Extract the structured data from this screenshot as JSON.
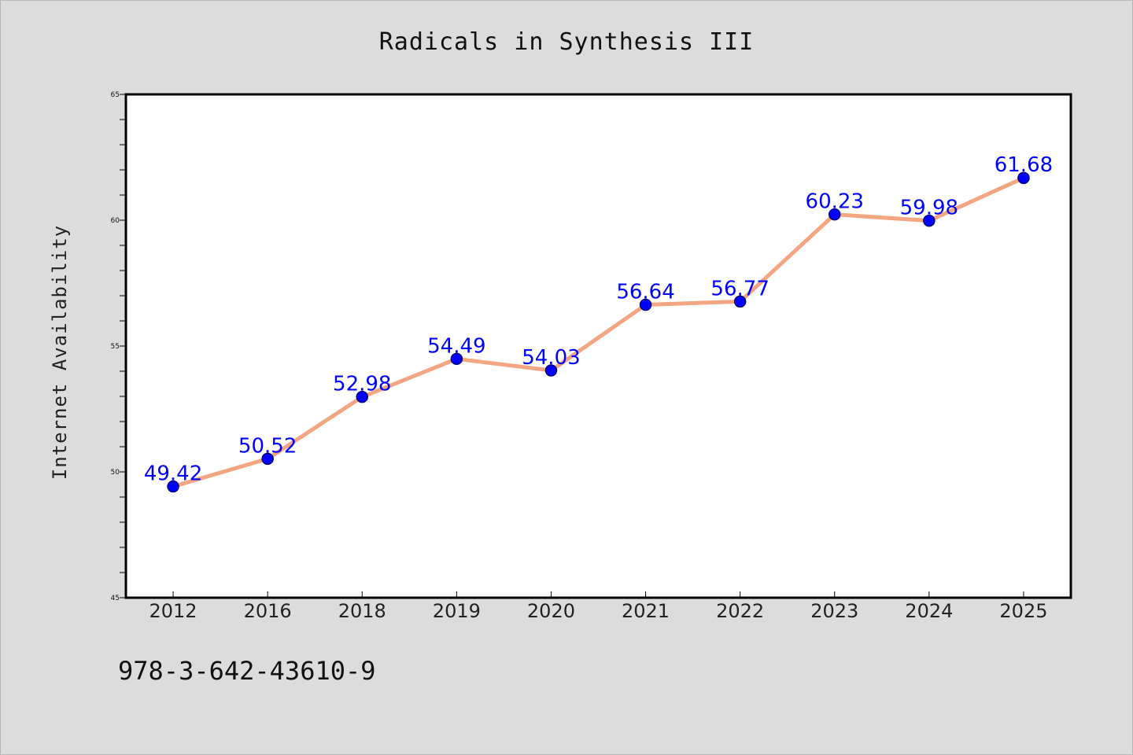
{
  "chart_data": {
    "type": "line",
    "title": "Radicals in Synthesis III",
    "xlabel": "",
    "ylabel": "Internet Availability",
    "categories": [
      "2012",
      "2016",
      "2018",
      "2019",
      "2020",
      "2021",
      "2022",
      "2023",
      "2024",
      "2025"
    ],
    "series": [
      {
        "values": [
          49.42,
          50.52,
          52.98,
          54.49,
          54.03,
          56.64,
          56.77,
          60.23,
          59.98,
          61.68
        ],
        "labels": [
          "49.42",
          "50.52",
          "52.98",
          "54.49",
          "54.03",
          "56.64",
          "56.77",
          "60.23",
          "59.98",
          "61.68"
        ]
      }
    ],
    "ylim": [
      45,
      65
    ],
    "yticks": [
      45,
      50,
      55,
      60,
      65
    ],
    "grid": false,
    "legend": "none",
    "colors": {
      "line": "#f4a582",
      "marker": "#0000ff",
      "marker_edge": "#00007a",
      "label": "#0000ff",
      "plot_background": "#ffffff",
      "page_background": "#dcdcdc"
    }
  },
  "footnote": "978-3-642-43610-9"
}
